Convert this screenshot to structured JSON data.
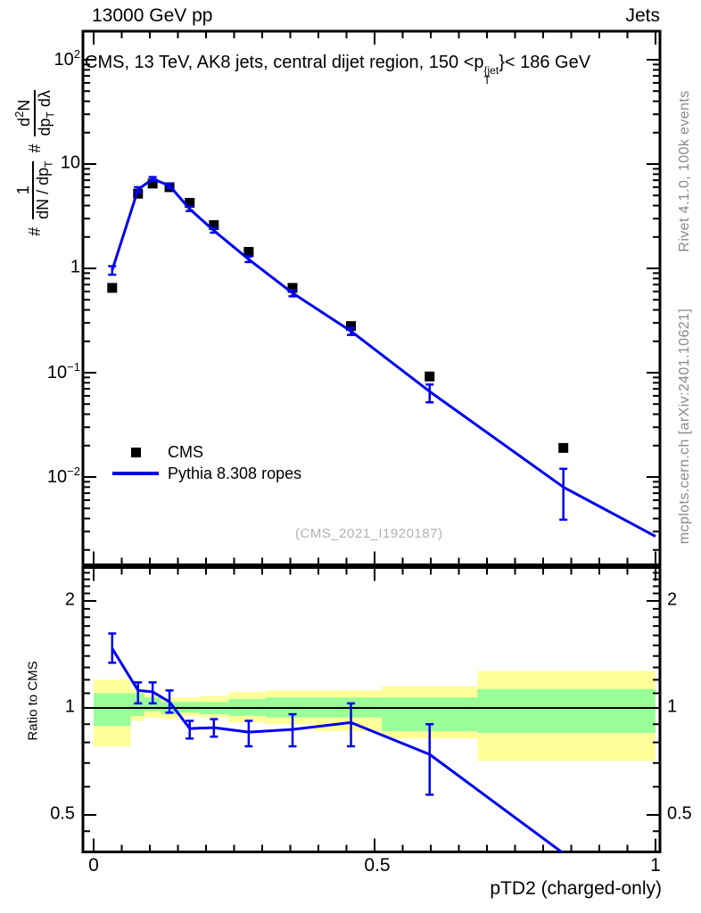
{
  "header": {
    "left": "13000 GeV pp",
    "right": "Jets"
  },
  "panel_title_html": "CMS, 13 TeV, AK8 jets, central dijet region, 150 &lt;p<span class=ss><span>{jet</span><span>T</span></span>}&lt; 186 GeV",
  "y_axis_label": {
    "hash1": "#",
    "frac1_num": "1",
    "frac1_den_html": "dN / dp<sub>T</sub>",
    "hash2": "#",
    "frac2_num_html": "d<sup>2</sup>N",
    "frac2_den_html": "dp<sub>T</sub> dλ"
  },
  "x_axis_label": "pTD2 (charged-only)",
  "watermark": "(CMS_2021_I1920187)",
  "credits": {
    "rivet": "Rivet 4.1.0,  100k events",
    "mcplots": "mcplots.cern.ch [arXiv:2401.10621]"
  },
  "legend": [
    {
      "label": "CMS",
      "marker": "black-square"
    },
    {
      "label": "Pythia 8.308 ropes",
      "marker": "blue-line"
    }
  ],
  "colors": {
    "mc_blue": "#0000ee",
    "data_black": "#000000",
    "band_total_yellow": "#ffff99",
    "band_stat_green": "#99ff99",
    "credit_gray": "#8a8a8a",
    "watermark_gray": "#b2b2b2"
  },
  "chart_data": {
    "type": "line",
    "title": "CMS, 13 TeV, AK8 jets, central dijet region, 150 < pT(jet) < 186 GeV",
    "xlabel": "pTD2 (charged-only)",
    "x_ticks": {
      "majors": [
        0,
        0.5,
        1
      ],
      "labels": [
        "0",
        "0.5",
        "1"
      ],
      "minor_step": 0.05
    },
    "xlim": [
      0,
      1
    ],
    "main_panel": {
      "y_scale": "log10",
      "ylim": [
        0.0015,
        188
      ],
      "grid": false,
      "legend_position": "left-middle",
      "y_tick_labels": [
        {
          "v": 100,
          "html": "10<sup>2</sup>"
        },
        {
          "v": 10,
          "html": "10"
        },
        {
          "v": 1,
          "html": "1"
        },
        {
          "v": 0.1,
          "html": "10<sup>−1</sup>"
        },
        {
          "v": 0.01,
          "html": "10<sup>−2</sup>"
        }
      ],
      "x": [
        0.033,
        0.079,
        0.105,
        0.135,
        0.171,
        0.214,
        0.276,
        0.354,
        0.458,
        0.598,
        0.836
      ],
      "series": [
        {
          "name": "CMS",
          "style": "points",
          "marker": "filled-square",
          "y": [
            0.65,
            5.2,
            6.5,
            6.0,
            4.25,
            2.6,
            1.44,
            0.65,
            0.28,
            0.092,
            0.019
          ]
        },
        {
          "name": "Pythia 8.308 ropes",
          "style": "line+errorbars",
          "y": [
            0.96,
            5.7,
            7.2,
            6.2,
            3.7,
            2.3,
            1.22,
            0.58,
            0.25,
            0.066,
            0.008
          ],
          "y_lo": [
            0.87,
            5.4,
            6.9,
            5.9,
            3.55,
            2.2,
            1.15,
            0.54,
            0.23,
            0.052,
            0.0039
          ],
          "y_hi": [
            1.05,
            6.0,
            7.5,
            6.5,
            3.9,
            2.42,
            1.3,
            0.62,
            0.27,
            0.077,
            0.012
          ],
          "line_end": {
            "x": 1.0,
            "y": 0.0027
          }
        }
      ]
    },
    "ratio_panel": {
      "y_label": "Ratio to CMS",
      "y_scale": "log2",
      "ylim": [
        0.394,
        2.49
      ],
      "reference_line": 1,
      "y_tick_labels": [
        {
          "v": 2,
          "label": "2"
        },
        {
          "v": 1,
          "label": "1"
        },
        {
          "v": 0.5,
          "label": "0.5"
        }
      ],
      "bin_edges": [
        0,
        0.066,
        0.09,
        0.12,
        0.15,
        0.19,
        0.24,
        0.306,
        0.392,
        0.513,
        0.683,
        1.0
      ],
      "uncertainty_bands": [
        {
          "x0": 0.0,
          "x1": 0.066,
          "total": [
            0.78,
            1.2
          ],
          "stat": [
            0.89,
            1.1
          ]
        },
        {
          "x0": 0.066,
          "x1": 0.09,
          "total": [
            0.92,
            1.13
          ],
          "stat": [
            0.95,
            1.1
          ]
        },
        {
          "x0": 0.09,
          "x1": 0.12,
          "total": [
            0.94,
            1.09
          ],
          "stat": [
            0.98,
            1.07
          ]
        },
        {
          "x0": 0.12,
          "x1": 0.15,
          "total": [
            0.93,
            1.07
          ],
          "stat": [
            0.96,
            1.04
          ]
        },
        {
          "x0": 0.15,
          "x1": 0.19,
          "total": [
            0.95,
            1.07
          ],
          "stat": [
            0.97,
            1.04
          ]
        },
        {
          "x0": 0.19,
          "x1": 0.24,
          "total": [
            0.94,
            1.08
          ],
          "stat": [
            0.96,
            1.04
          ]
        },
        {
          "x0": 0.24,
          "x1": 0.306,
          "total": [
            0.91,
            1.11
          ],
          "stat": [
            0.95,
            1.06
          ]
        },
        {
          "x0": 0.306,
          "x1": 0.392,
          "total": [
            0.9,
            1.12
          ],
          "stat": [
            0.94,
            1.07
          ]
        },
        {
          "x0": 0.392,
          "x1": 0.513,
          "total": [
            0.86,
            1.12
          ],
          "stat": [
            0.94,
            1.07
          ]
        },
        {
          "x0": 0.513,
          "x1": 0.683,
          "total": [
            0.82,
            1.15
          ],
          "stat": [
            0.86,
            1.07
          ]
        },
        {
          "x0": 0.683,
          "x1": 1.0,
          "total": [
            0.71,
            1.27
          ],
          "stat": [
            0.85,
            1.13
          ]
        }
      ],
      "x": [
        0.033,
        0.079,
        0.105,
        0.135,
        0.171,
        0.214,
        0.276,
        0.354,
        0.458,
        0.598,
        0.836
      ],
      "series": [
        {
          "name": "Pythia 8.308 ropes / CMS",
          "ratio": [
            1.47,
            1.12,
            1.11,
            1.04,
            0.875,
            0.88,
            0.855,
            0.87,
            0.91,
            0.74,
            0.39
          ],
          "lo": [
            1.34,
            1.03,
            1.03,
            0.97,
            0.82,
            0.83,
            0.78,
            0.78,
            0.78,
            0.57,
            null
          ],
          "hi": [
            1.62,
            1.18,
            1.18,
            1.12,
            0.92,
            0.93,
            0.92,
            0.96,
            1.03,
            0.9,
            null
          ]
        }
      ]
    }
  }
}
